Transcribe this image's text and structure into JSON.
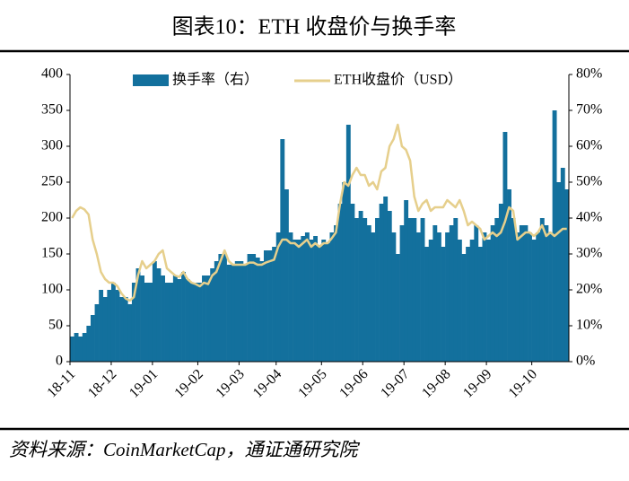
{
  "chart_data": {
    "type": "bar",
    "title": "图表10：ETH 收盘价与换手率",
    "source": "资料来源：CoinMarketCap，通证通研究院",
    "categories": [
      "18-11",
      null,
      null,
      null,
      null,
      null,
      null,
      null,
      null,
      null,
      "18-12",
      null,
      null,
      null,
      null,
      null,
      null,
      null,
      null,
      null,
      "19-01",
      null,
      null,
      null,
      null,
      null,
      null,
      null,
      null,
      null,
      null,
      "19-02",
      null,
      null,
      null,
      null,
      null,
      null,
      null,
      null,
      null,
      "19-03",
      null,
      null,
      null,
      null,
      null,
      null,
      null,
      null,
      "19-04",
      null,
      null,
      null,
      null,
      null,
      null,
      null,
      null,
      null,
      null,
      "19-05",
      null,
      null,
      null,
      null,
      null,
      null,
      null,
      null,
      null,
      "19-06",
      null,
      null,
      null,
      null,
      null,
      null,
      null,
      null,
      null,
      "19-07",
      null,
      null,
      null,
      null,
      null,
      null,
      null,
      null,
      null,
      "19-08",
      null,
      null,
      null,
      null,
      null,
      null,
      null,
      null,
      null,
      "19-09",
      null,
      null,
      null,
      null,
      null,
      null,
      null,
      null,
      null,
      null,
      "19-10",
      null,
      null,
      null,
      null,
      null,
      null,
      null,
      null
    ],
    "series": [
      {
        "name": "换手率（右）",
        "type": "bar",
        "axis": "y2",
        "color": "#13709d",
        "values": [
          7,
          8,
          7,
          8,
          10,
          13,
          16,
          20,
          18,
          20,
          22,
          20,
          18,
          18,
          16,
          22,
          26,
          24,
          22,
          22,
          28,
          26,
          24,
          22,
          22,
          24,
          23,
          25,
          23,
          22,
          22,
          22,
          24,
          24,
          26,
          28,
          30,
          30,
          27,
          27,
          28,
          28,
          27,
          30,
          30,
          29,
          28,
          31,
          31,
          32,
          36,
          62,
          48,
          36,
          34,
          34,
          35,
          36,
          34,
          35,
          32,
          34,
          33,
          36,
          38,
          44,
          50,
          66,
          44,
          40,
          42,
          40,
          38,
          36,
          40,
          44,
          46,
          42,
          36,
          30,
          38,
          45,
          40,
          40,
          36,
          40,
          32,
          34,
          38,
          36,
          32,
          36,
          38,
          40,
          34,
          30,
          32,
          34,
          38,
          32,
          36,
          34,
          38,
          40,
          44,
          64,
          48,
          40,
          36,
          38,
          38,
          36,
          34,
          36,
          40,
          38,
          36,
          70,
          50,
          54,
          48
        ]
      },
      {
        "name": "ETH收盘价（USD）",
        "type": "line",
        "color": "#e6cf8c",
        "values": [
          200,
          210,
          215,
          212,
          205,
          170,
          150,
          125,
          115,
          110,
          110,
          105,
          95,
          88,
          85,
          90,
          120,
          140,
          130,
          135,
          140,
          150,
          155,
          130,
          125,
          120,
          118,
          125,
          115,
          110,
          108,
          105,
          110,
          108,
          120,
          125,
          140,
          155,
          140,
          135,
          135,
          135,
          135,
          138,
          138,
          135,
          135,
          138,
          140,
          142,
          160,
          170,
          170,
          165,
          165,
          160,
          165,
          170,
          160,
          165,
          160,
          165,
          165,
          172,
          180,
          220,
          250,
          245,
          260,
          270,
          260,
          260,
          245,
          250,
          240,
          265,
          270,
          300,
          310,
          330,
          300,
          295,
          280,
          230,
          210,
          220,
          225,
          210,
          215,
          215,
          215,
          225,
          220,
          215,
          225,
          210,
          190,
          195,
          190,
          185,
          170,
          175,
          180,
          175,
          180,
          195,
          215,
          210,
          170,
          175,
          180,
          180,
          175,
          180,
          190,
          175,
          180,
          175,
          180,
          185,
          185
        ]
      }
    ],
    "ylim": [
      0,
      400
    ],
    "yticks": [
      0,
      50,
      100,
      150,
      200,
      250,
      300,
      350,
      400
    ],
    "y2lim": [
      0,
      80
    ],
    "y2ticks": [
      {
        "value": 0,
        "label": "0%"
      },
      {
        "value": 10,
        "label": "10%"
      },
      {
        "value": 20,
        "label": "20%"
      },
      {
        "value": 30,
        "label": "30%"
      },
      {
        "value": 40,
        "label": "40%"
      },
      {
        "value": 50,
        "label": "50%"
      },
      {
        "value": 60,
        "label": "60%"
      },
      {
        "value": 70,
        "label": "70%"
      },
      {
        "value": 80,
        "label": "80%"
      }
    ],
    "legend": "top"
  }
}
